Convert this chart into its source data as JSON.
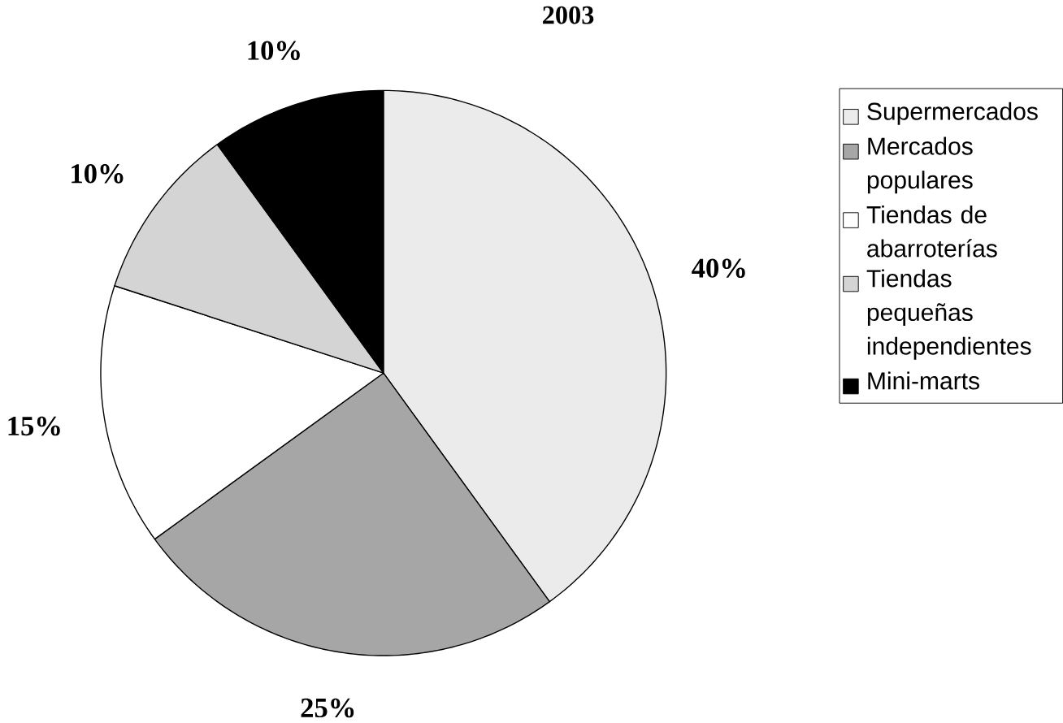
{
  "chart_data": {
    "type": "pie",
    "title": "2003",
    "categories": [
      "Supermercados",
      "Mercados populares",
      "Tiendas de abarroterías",
      "Tiendas pequeñas independientes",
      "Mini-marts"
    ],
    "values": [
      40,
      25,
      15,
      10,
      10
    ],
    "value_labels": [
      "40%",
      "25%",
      "15%",
      "10%",
      "10%"
    ],
    "colors": [
      "#ebebeb",
      "#a6a6a6",
      "#ffffff",
      "#d4d4d4",
      "#000000"
    ],
    "legend": "right"
  }
}
